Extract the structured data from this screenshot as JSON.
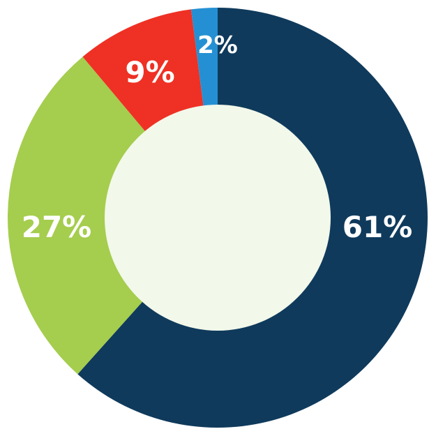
{
  "chart_data": {
    "type": "pie",
    "donut": true,
    "title": "",
    "start": "top",
    "direction": "clockwise",
    "slices": [
      {
        "label": "61%",
        "value": 61,
        "color": "#0f3a5c"
      },
      {
        "label": "27%",
        "value": 27,
        "color": "#a5cd4e"
      },
      {
        "label": "9%",
        "value": 9,
        "color": "#ee3124"
      },
      {
        "label": "2%",
        "value": 2,
        "color": "#2490d3"
      }
    ],
    "center_color": "#f2f8ea",
    "legend": "none"
  }
}
